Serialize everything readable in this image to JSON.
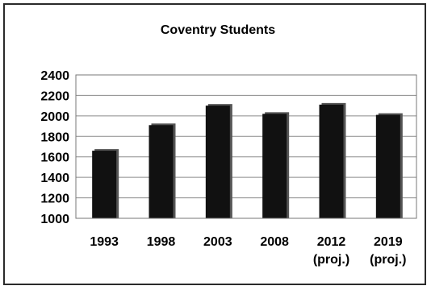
{
  "chart_data": {
    "type": "bar",
    "title": "Coventry Students",
    "categories": [
      [
        "1993"
      ],
      [
        "1998"
      ],
      [
        "2003"
      ],
      [
        "2008"
      ],
      [
        "2012",
        "(proj.)"
      ],
      [
        "2019",
        "(proj.)"
      ]
    ],
    "values": [
      1660,
      1910,
      2100,
      2020,
      2110,
      2010
    ],
    "ylim": [
      1000,
      2400
    ],
    "yticks": [
      1000,
      1200,
      1400,
      1600,
      1800,
      2000,
      2200,
      2400
    ],
    "grid": true,
    "bar_color": "#111111",
    "plot_background": "#ffffff"
  }
}
